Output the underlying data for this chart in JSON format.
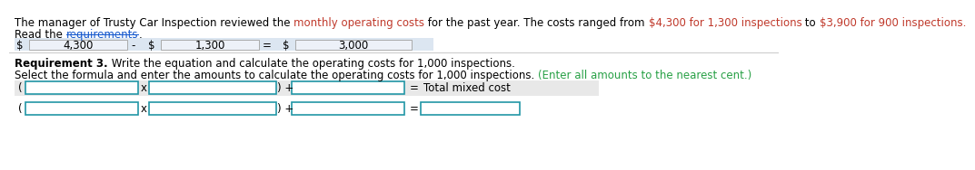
{
  "line1_text": "The manager of Trusty Car Inspection reviewed the ",
  "line1_highlight": "monthly operating costs",
  "line1_text2": " for the past year. The costs ranged from ",
  "line1_highlight2": "$4,300 for 1,300 inspections",
  "line1_text3": " to ",
  "line1_highlight3": "$3,900 for 900 inspections.",
  "read_text": "Read the ",
  "req_link": "requirements",
  "req_dot": ".",
  "req3_bold": "Requirement 3.",
  "req3_text": " Write the equation and calculate the operating costs for 1,000 inspections.",
  "select_text": "Select the formula and enter the amounts to calculate the operating costs for 1,000 inspections. ",
  "select_green": "(Enter all amounts to the nearest cent.)",
  "row1_label": "Total mixed cost",
  "bg_color": "#ffffff",
  "box_border_color": "#2196A6",
  "box_fill": "#ffffff",
  "row_bg": "#dce6f1",
  "shaded_bg": "#e8e8e8",
  "text_color": "#000000",
  "highlight_color": "#c0392b",
  "link_color": "#1155cc",
  "green_color": "#27a045",
  "font_size": 8.5
}
